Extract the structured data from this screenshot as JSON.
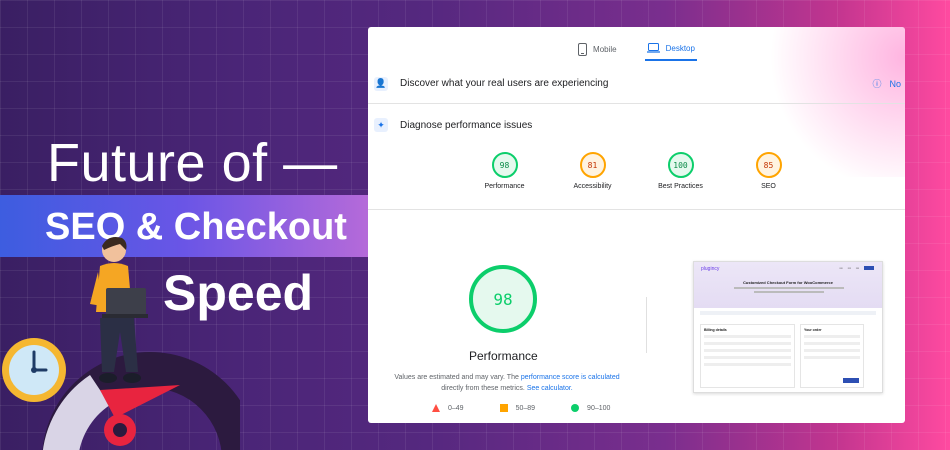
{
  "headline": {
    "line1": "Future of —",
    "line2": "SEO & Checkout",
    "line3": "Speed"
  },
  "report": {
    "tabs": [
      {
        "label": "Mobile",
        "icon": "phone-icon",
        "active": false
      },
      {
        "label": "Desktop",
        "icon": "laptop-icon",
        "active": true
      }
    ],
    "discover_text": "Discover what your real users are experiencing",
    "discover_right_text": "No",
    "diagnose_text": "Diagnose performance issues",
    "scores": [
      {
        "label": "Performance",
        "value": "98",
        "status": "good"
      },
      {
        "label": "Accessibility",
        "value": "81",
        "status": "average"
      },
      {
        "label": "Best Practices",
        "value": "100",
        "status": "good"
      },
      {
        "label": "SEO",
        "value": "85",
        "status": "average"
      }
    ],
    "main_score": {
      "value": "98",
      "label": "Performance"
    },
    "description": {
      "text1": "Values are estimated and may vary. The ",
      "link1": "performance score is calculated",
      "text2": " directly from these metrics. ",
      "link2": "See calculator."
    },
    "legend": [
      {
        "range": "0–49",
        "shape": "triangle",
        "color": "#ff4e42"
      },
      {
        "range": "50–89",
        "shape": "square",
        "color": "#ffa400"
      },
      {
        "range": "90–100",
        "shape": "circle",
        "color": "#0cce6b"
      }
    ]
  },
  "mini_screenshot": {
    "logo": "plugincy",
    "title": "Customized Checkout Form for WooCommerce",
    "form_heading": "Billing details",
    "order_heading": "Your order"
  },
  "colors": {
    "good": "#0cce6b",
    "average": "#ffa400",
    "poor": "#ff4e42",
    "accent": "#1a73e8"
  }
}
